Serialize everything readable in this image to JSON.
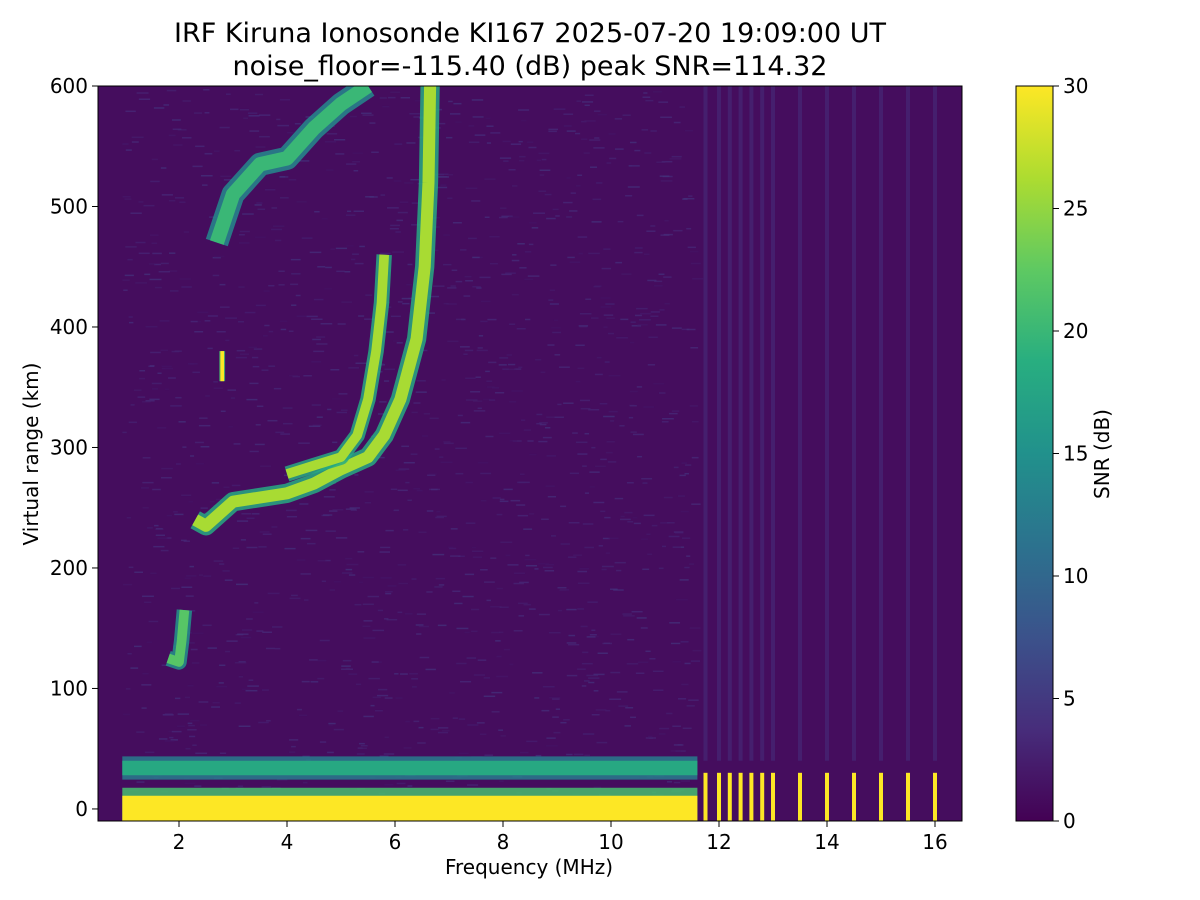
{
  "chart_data": {
    "type": "heatmap",
    "title": "IRF Kiruna Ionosonde KI167 2025-07-20 19:09:00  UT",
    "subtitle": "noise_floor=-115.40 (dB) peak SNR=114.32",
    "xlabel": "Frequency (MHz)",
    "ylabel": "Virtual range (km)",
    "colorbar_label": "SNR (dB)",
    "colormap": "viridis",
    "xlim": [
      0.5,
      16.5
    ],
    "ylim": [
      -10,
      600
    ],
    "clim": [
      0,
      30
    ],
    "x_ticks": [
      "2",
      "4",
      "6",
      "8",
      "10",
      "12",
      "14",
      "16"
    ],
    "y_ticks": [
      "0",
      "100",
      "200",
      "300",
      "400",
      "500",
      "600"
    ],
    "colorbar_ticks": [
      "0",
      "5",
      "10",
      "15",
      "20",
      "25",
      "30"
    ],
    "grid": false,
    "background_snr": 1,
    "traces": [
      {
        "name": "ground clutter",
        "snr": 30,
        "points": [
          [
            0.95,
            0
          ],
          [
            11.6,
            0
          ]
        ],
        "thickness_km": 22
      },
      {
        "name": "low-range echo",
        "snr": 18,
        "points": [
          [
            0.95,
            34
          ],
          [
            11.6,
            34
          ]
        ],
        "thickness_km": 12
      },
      {
        "name": "E echo",
        "snr": 22,
        "points": [
          [
            1.8,
            125
          ],
          [
            2.0,
            122
          ],
          [
            2.05,
            140
          ],
          [
            2.1,
            165
          ]
        ],
        "thickness_km": 8
      },
      {
        "name": "F trace",
        "snr": 26,
        "points": [
          [
            2.3,
            240
          ],
          [
            2.5,
            235
          ],
          [
            3.0,
            255
          ],
          [
            4.0,
            262
          ],
          [
            4.5,
            270
          ],
          [
            5.0,
            282
          ],
          [
            5.5,
            292
          ],
          [
            5.8,
            310
          ],
          [
            6.1,
            340
          ],
          [
            6.4,
            390
          ],
          [
            6.55,
            450
          ],
          [
            6.62,
            520
          ],
          [
            6.65,
            600
          ]
        ],
        "thickness_km": 10
      },
      {
        "name": "second trace",
        "snr": 26,
        "points": [
          [
            4.0,
            278
          ],
          [
            4.5,
            285
          ],
          [
            5.0,
            292
          ],
          [
            5.3,
            310
          ],
          [
            5.5,
            340
          ],
          [
            5.65,
            380
          ],
          [
            5.75,
            420
          ],
          [
            5.8,
            460
          ]
        ],
        "thickness_km": 8
      },
      {
        "name": "multi-hop echo",
        "snr": 20,
        "points": [
          [
            2.7,
            470
          ],
          [
            3.0,
            510
          ],
          [
            3.5,
            535
          ],
          [
            4.0,
            540
          ],
          [
            4.5,
            565
          ],
          [
            5.0,
            585
          ],
          [
            5.5,
            600
          ]
        ],
        "thickness_km": 12
      },
      {
        "name": "short echo",
        "snr": 30,
        "points": [
          [
            2.8,
            355
          ],
          [
            2.8,
            380
          ]
        ],
        "thickness_km": 3
      }
    ],
    "bands_above_11_6_mhz": [
      11.75,
      12.0,
      12.2,
      12.4,
      12.6,
      12.8,
      13.0,
      13.5,
      14.0,
      14.5,
      15.0,
      15.5,
      16.0
    ]
  }
}
